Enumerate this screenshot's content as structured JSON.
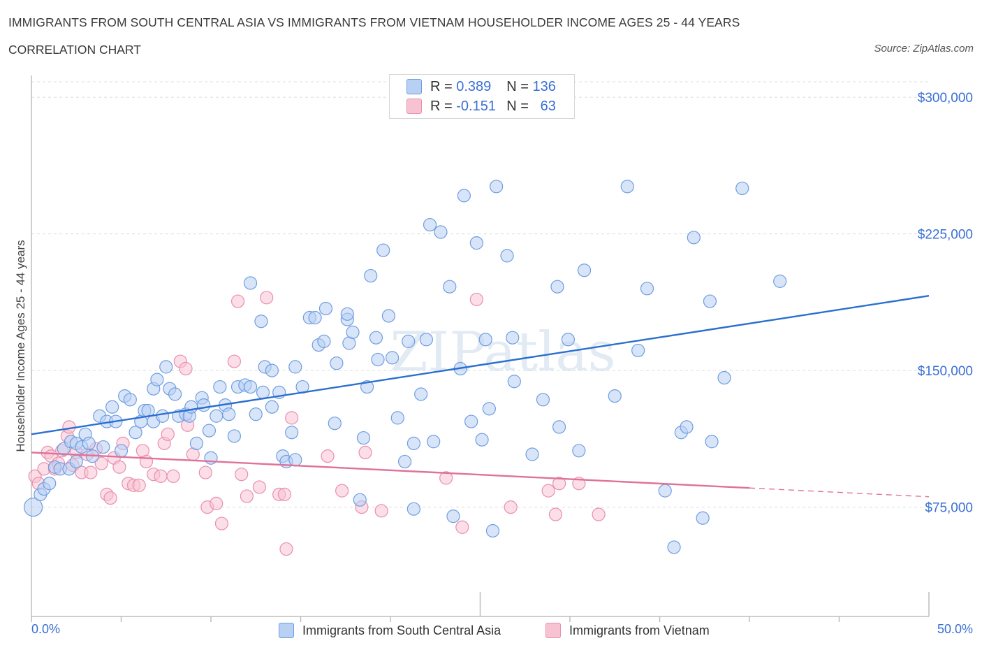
{
  "header": {
    "title": "IMMIGRANTS FROM SOUTH CENTRAL ASIA VS IMMIGRANTS FROM VIETNAM HOUSEHOLDER INCOME AGES 25 - 44 YEARS",
    "subtitle": "CORRELATION CHART",
    "source": "Source: ZipAtlas.com"
  },
  "legend": {
    "r_label": "R =",
    "n_label": "N =",
    "rows": [
      {
        "r": "0.389",
        "n": "136"
      },
      {
        "r": "-0.151",
        "n": "63"
      }
    ]
  },
  "bottom_legend": [
    "Immigrants from South Central Asia",
    "Immigrants from Vietnam"
  ],
  "axis": {
    "x_min_label": "0.0%",
    "x_max_label": "50.0%"
  },
  "colors": {
    "blue_fill": "#b8d0f4",
    "blue_stroke": "#6f9de0",
    "blue_line": "#2a6fd0",
    "pink_fill": "#f7c3d3",
    "pink_stroke": "#e990ac",
    "pink_line": "#e0719a",
    "tick_text": "#3a6fd6",
    "grid": "#dcdcdc"
  },
  "chart_data": {
    "type": "scatter",
    "title": "IMMIGRANTS FROM SOUTH CENTRAL ASIA VS IMMIGRANTS FROM VIETNAM HOUSEHOLDER INCOME AGES 25 - 44 YEARS",
    "xlabel": "",
    "ylabel": "Householder Income Ages 25 - 44 years",
    "xlim": [
      0,
      50
    ],
    "ylim": [
      15000,
      315000
    ],
    "y_ticks": [
      {
        "value": 75000,
        "label": "$75,000"
      },
      {
        "value": 150000,
        "label": "$150,000"
      },
      {
        "value": 225000,
        "label": "$225,000"
      },
      {
        "value": 300000,
        "label": "$300,000"
      }
    ],
    "watermark": "ZIPatlas",
    "series": [
      {
        "name": "Immigrants from South Central Asia",
        "R": 0.389,
        "N": 136,
        "trend": {
          "x": [
            0,
            50
          ],
          "y": [
            115000,
            191000
          ]
        },
        "points": [
          [
            0.1,
            75000
          ],
          [
            0.5,
            82000
          ],
          [
            0.7,
            85000
          ],
          [
            1.0,
            88000
          ],
          [
            1.3,
            97000
          ],
          [
            1.6,
            96000
          ],
          [
            1.8,
            107000
          ],
          [
            2.1,
            96000
          ],
          [
            2.2,
            111000
          ],
          [
            2.5,
            110000
          ],
          [
            2.5,
            100000
          ],
          [
            2.8,
            108000
          ],
          [
            3.0,
            115000
          ],
          [
            3.2,
            110000
          ],
          [
            3.4,
            103000
          ],
          [
            3.8,
            125000
          ],
          [
            4.0,
            108000
          ],
          [
            4.2,
            122000
          ],
          [
            4.5,
            130000
          ],
          [
            4.7,
            122000
          ],
          [
            5.0,
            106000
          ],
          [
            5.2,
            136000
          ],
          [
            5.5,
            134000
          ],
          [
            5.8,
            116000
          ],
          [
            6.1,
            122000
          ],
          [
            6.3,
            128000
          ],
          [
            6.5,
            128000
          ],
          [
            6.8,
            122000
          ],
          [
            6.8,
            140000
          ],
          [
            7.0,
            145000
          ],
          [
            7.3,
            125000
          ],
          [
            7.5,
            152000
          ],
          [
            7.7,
            140000
          ],
          [
            8.0,
            137000
          ],
          [
            8.2,
            125000
          ],
          [
            8.6,
            126000
          ],
          [
            8.8,
            125000
          ],
          [
            8.9,
            130000
          ],
          [
            9.2,
            110000
          ],
          [
            9.5,
            135000
          ],
          [
            9.6,
            131000
          ],
          [
            9.9,
            117000
          ],
          [
            10.0,
            102000
          ],
          [
            10.3,
            125000
          ],
          [
            10.5,
            141000
          ],
          [
            10.8,
            131000
          ],
          [
            11.0,
            126000
          ],
          [
            11.3,
            114000
          ],
          [
            11.5,
            141000
          ],
          [
            11.9,
            142000
          ],
          [
            12.2,
            141000
          ],
          [
            12.5,
            126000
          ],
          [
            12.9,
            138000
          ],
          [
            12.8,
            177000
          ],
          [
            12.2,
            198000
          ],
          [
            13.0,
            152000
          ],
          [
            13.4,
            150000
          ],
          [
            13.4,
            130000
          ],
          [
            13.8,
            138000
          ],
          [
            14.0,
            103000
          ],
          [
            14.2,
            100000
          ],
          [
            14.5,
            116000
          ],
          [
            14.7,
            152000
          ],
          [
            14.7,
            101000
          ],
          [
            15.1,
            141000
          ],
          [
            15.5,
            179000
          ],
          [
            15.8,
            179000
          ],
          [
            16.0,
            164000
          ],
          [
            16.3,
            166000
          ],
          [
            16.4,
            184000
          ],
          [
            16.9,
            121000
          ],
          [
            17.0,
            154000
          ],
          [
            17.6,
            178000
          ],
          [
            17.6,
            181000
          ],
          [
            17.7,
            165000
          ],
          [
            17.9,
            171000
          ],
          [
            18.3,
            79000
          ],
          [
            18.5,
            113000
          ],
          [
            18.7,
            141000
          ],
          [
            18.9,
            202000
          ],
          [
            19.2,
            168000
          ],
          [
            19.3,
            156000
          ],
          [
            19.6,
            216000
          ],
          [
            19.9,
            180000
          ],
          [
            20.1,
            157000
          ],
          [
            20.4,
            124000
          ],
          [
            20.8,
            100000
          ],
          [
            21.0,
            166000
          ],
          [
            21.3,
            110000
          ],
          [
            21.3,
            74000
          ],
          [
            21.7,
            137000
          ],
          [
            22.0,
            167000
          ],
          [
            22.2,
            230000
          ],
          [
            22.4,
            111000
          ],
          [
            22.8,
            226000
          ],
          [
            23.3,
            196000
          ],
          [
            23.5,
            70000
          ],
          [
            23.9,
            151000
          ],
          [
            24.1,
            246000
          ],
          [
            24.5,
            122000
          ],
          [
            24.8,
            220000
          ],
          [
            25.1,
            112000
          ],
          [
            25.3,
            167000
          ],
          [
            25.5,
            129000
          ],
          [
            25.7,
            62000
          ],
          [
            25.9,
            251000
          ],
          [
            26.5,
            213000
          ],
          [
            26.8,
            168000
          ],
          [
            26.9,
            144000
          ],
          [
            27.9,
            104000
          ],
          [
            28.5,
            134000
          ],
          [
            29.3,
            196000
          ],
          [
            29.4,
            119000
          ],
          [
            29.9,
            167000
          ],
          [
            30.5,
            106000
          ],
          [
            30.8,
            205000
          ],
          [
            32.5,
            136000
          ],
          [
            33.2,
            251000
          ],
          [
            33.8,
            161000
          ],
          [
            34.3,
            195000
          ],
          [
            35.3,
            84000
          ],
          [
            35.8,
            53000
          ],
          [
            36.2,
            116000
          ],
          [
            36.5,
            119000
          ],
          [
            36.9,
            223000
          ],
          [
            37.4,
            69000
          ],
          [
            37.9,
            111000
          ],
          [
            37.8,
            188000
          ],
          [
            38.6,
            146000
          ],
          [
            39.6,
            250000
          ],
          [
            41.7,
            199000
          ]
        ]
      },
      {
        "name": "Immigrants from Vietnam",
        "R": -0.151,
        "N": 63,
        "trend": {
          "x": [
            0,
            40
          ],
          "y": [
            105000,
            85500
          ]
        },
        "trend_dashed": {
          "x": [
            40,
            50
          ],
          "y": [
            85500,
            80700
          ]
        },
        "points": [
          [
            0.2,
            92000
          ],
          [
            0.4,
            88000
          ],
          [
            0.7,
            96000
          ],
          [
            0.9,
            105000
          ],
          [
            1.1,
            103000
          ],
          [
            1.3,
            96000
          ],
          [
            1.5,
            99000
          ],
          [
            1.7,
            106000
          ],
          [
            2.0,
            114000
          ],
          [
            2.1,
            119000
          ],
          [
            2.3,
            98000
          ],
          [
            2.5,
            105000
          ],
          [
            2.8,
            94000
          ],
          [
            3.1,
            104000
          ],
          [
            3.3,
            94000
          ],
          [
            3.6,
            107000
          ],
          [
            3.9,
            99000
          ],
          [
            4.2,
            82000
          ],
          [
            4.4,
            80000
          ],
          [
            4.6,
            102000
          ],
          [
            4.9,
            97000
          ],
          [
            5.1,
            110000
          ],
          [
            5.4,
            88000
          ],
          [
            5.7,
            87000
          ],
          [
            6.0,
            87000
          ],
          [
            6.2,
            106000
          ],
          [
            6.4,
            100000
          ],
          [
            6.8,
            93000
          ],
          [
            7.2,
            92000
          ],
          [
            7.4,
            110000
          ],
          [
            7.6,
            115000
          ],
          [
            7.9,
            92000
          ],
          [
            8.3,
            155000
          ],
          [
            8.6,
            151000
          ],
          [
            8.7,
            120000
          ],
          [
            9.0,
            104000
          ],
          [
            9.7,
            94000
          ],
          [
            9.8,
            75000
          ],
          [
            10.3,
            77000
          ],
          [
            10.6,
            66000
          ],
          [
            11.3,
            155000
          ],
          [
            11.7,
            93000
          ],
          [
            11.5,
            188000
          ],
          [
            12.0,
            81000
          ],
          [
            12.7,
            86000
          ],
          [
            13.1,
            190000
          ],
          [
            13.8,
            82000
          ],
          [
            14.1,
            82000
          ],
          [
            14.2,
            52000
          ],
          [
            14.5,
            124000
          ],
          [
            16.5,
            103000
          ],
          [
            17.3,
            84000
          ],
          [
            18.4,
            75000
          ],
          [
            18.6,
            105000
          ],
          [
            19.5,
            73000
          ],
          [
            23.1,
            91000
          ],
          [
            24.0,
            64000
          ],
          [
            24.8,
            189000
          ],
          [
            26.7,
            75000
          ],
          [
            28.8,
            84000
          ],
          [
            29.2,
            71000
          ],
          [
            29.4,
            88000
          ],
          [
            30.5,
            88000
          ],
          [
            31.6,
            71000
          ]
        ]
      }
    ]
  }
}
